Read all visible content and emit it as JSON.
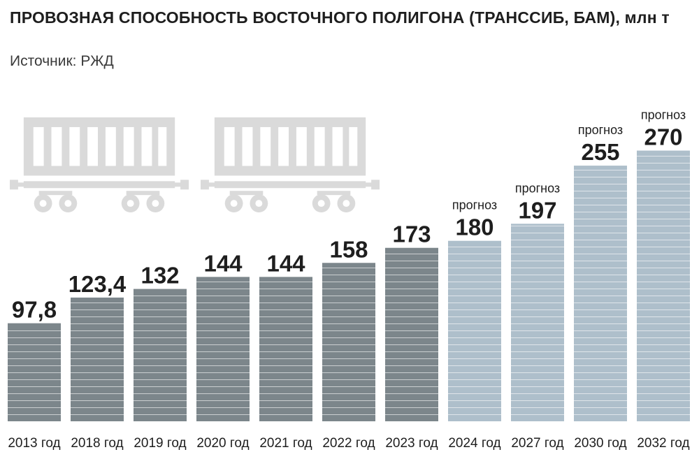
{
  "header": {
    "title": "ПРОВОЗНАЯ СПОСОБНОСТЬ ВОСТОЧНОГО ПОЛИГОНА (ТРАНССИБ, БАМ), млн т",
    "source": "Источник: РЖД"
  },
  "colors": {
    "actual": "#7c868b",
    "forecast": "#aebfcb",
    "stripe": "#ffffff",
    "wagon": "#dadada"
  },
  "icons": [
    "freight-wagon-icon",
    "freight-wagon-icon"
  ],
  "chart_data": {
    "type": "bar",
    "categories": [
      "2013 год",
      "2018 год",
      "2019 год",
      "2020 год",
      "2021 год",
      "2022 год",
      "2023 год",
      "2024 год",
      "2027 год",
      "2030 год",
      "2032 год"
    ],
    "values": [
      97.8,
      123.4,
      132,
      144,
      144,
      158,
      173,
      180,
      197,
      255,
      270
    ],
    "value_labels": [
      "97,8",
      "123,4",
      "132",
      "144",
      "144",
      "158",
      "173",
      "180",
      "197",
      "255",
      "270"
    ],
    "forecast": [
      false,
      false,
      false,
      false,
      false,
      false,
      false,
      true,
      true,
      true,
      true
    ],
    "forecast_label": "прогноз",
    "title": "ПРОВОЗНАЯ СПОСОБНОСТЬ ВОСТОЧНОГО ПОЛИГОНА (ТРАНССИБ, БАМ), млн т",
    "xlabel": "",
    "ylabel": "",
    "ylim": [
      0,
      270
    ],
    "grid": false,
    "legend": "none"
  }
}
